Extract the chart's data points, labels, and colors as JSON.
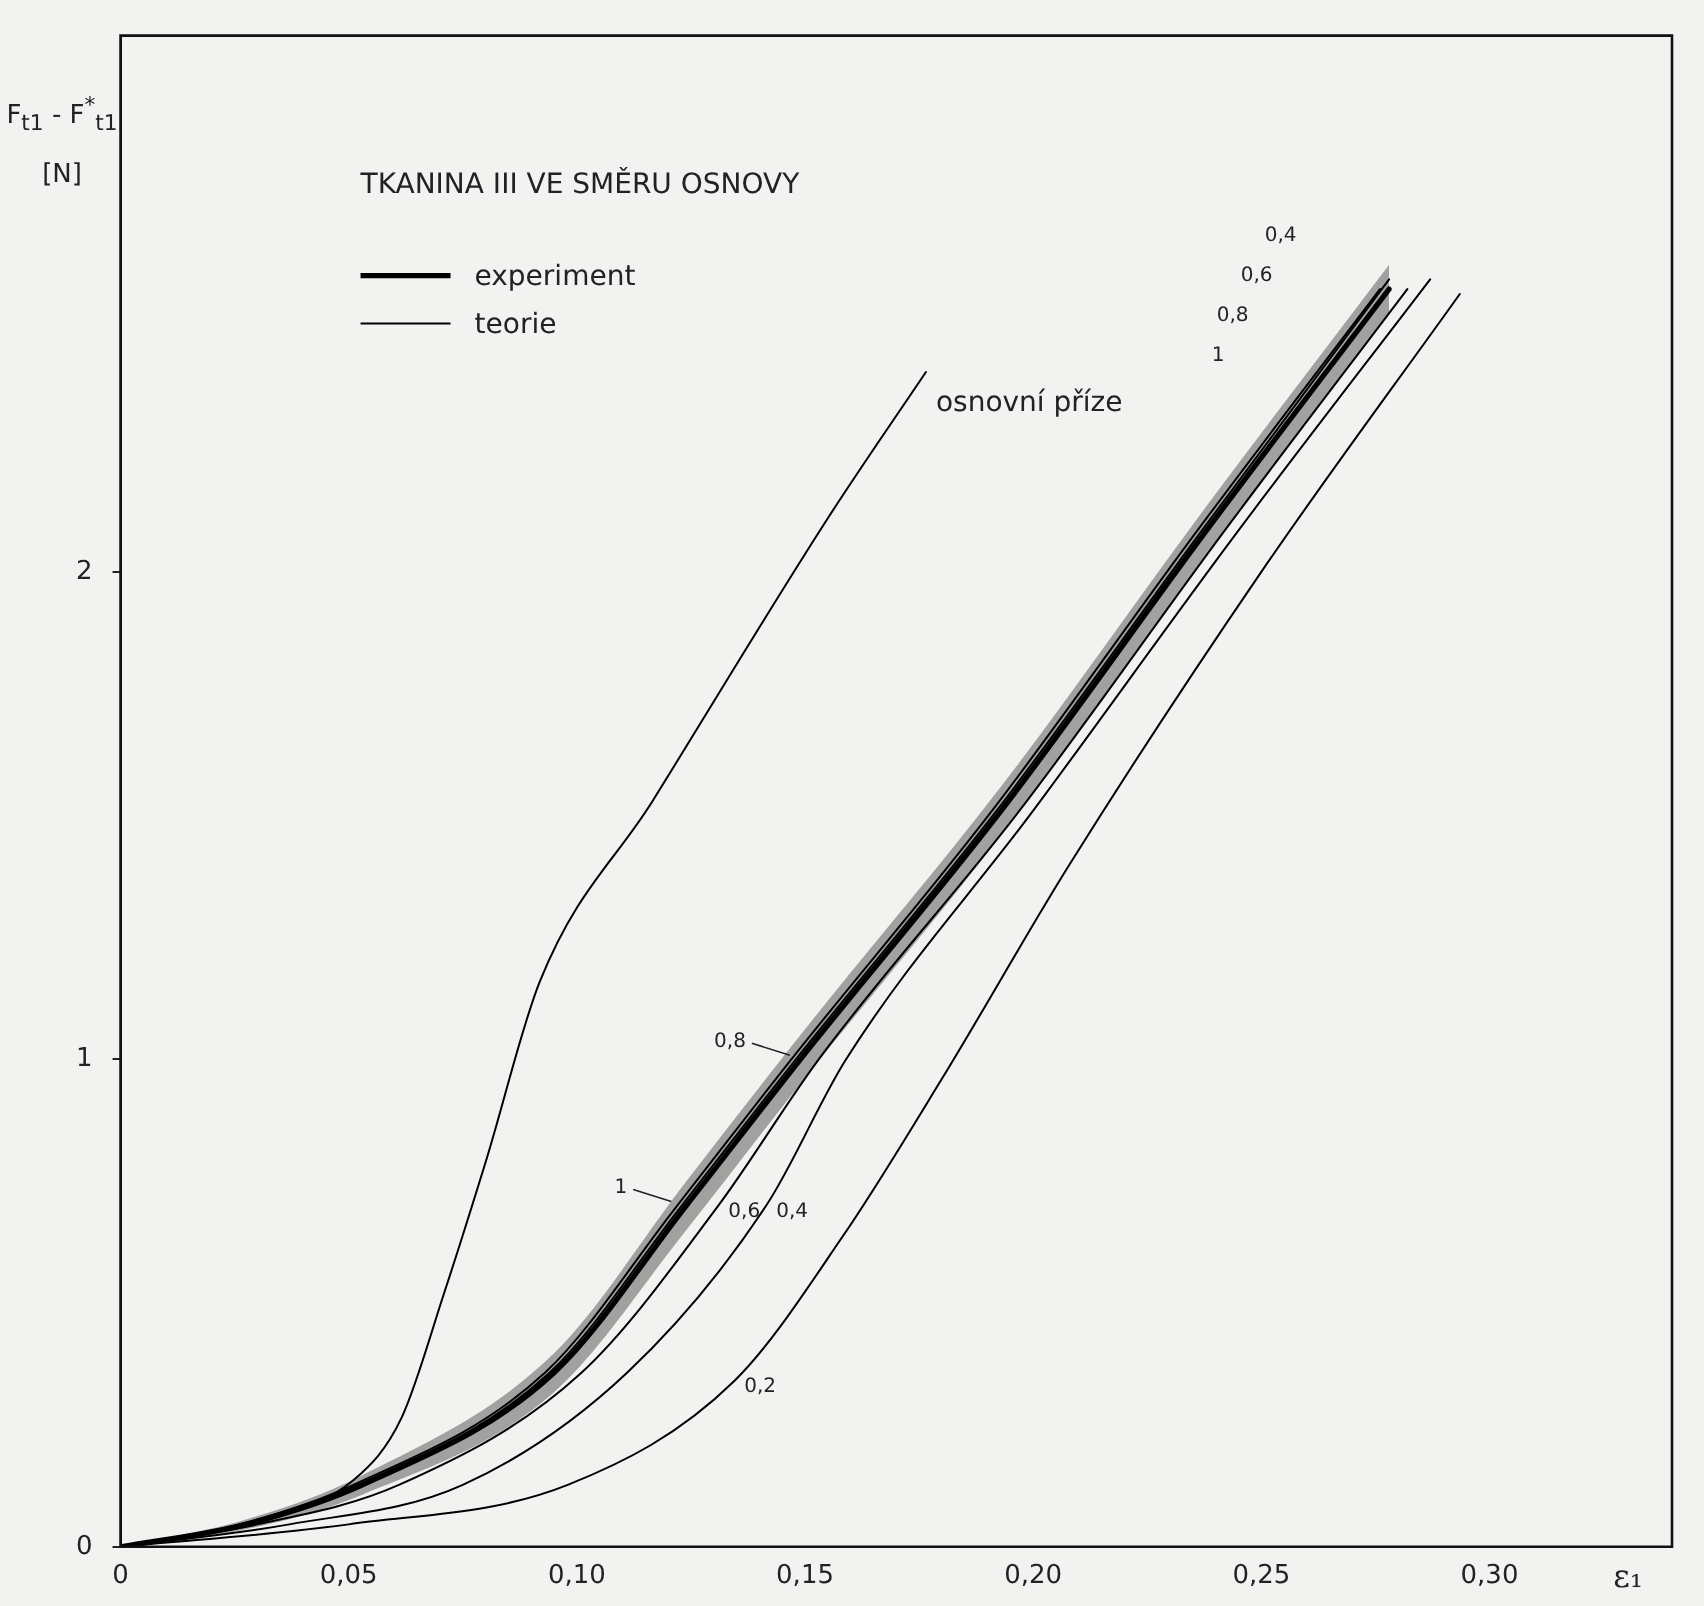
{
  "chart_data": {
    "type": "line",
    "title": "TKANINA III VE SMĚRU OSNOVY",
    "xlabel": "ε₁",
    "ylabel": "F$_{t1}$ - F$^{*}$$_{t1}$ [N]",
    "xlim": [
      0,
      0.34
    ],
    "ylim": [
      0,
      3.1
    ],
    "xticks": [
      0,
      {
        "value": 0.05,
        "label": "0,05"
      },
      {
        "value": 0.1,
        "label": "0,10"
      },
      {
        "value": 0.15,
        "label": "0,15"
      },
      {
        "value": 0.2,
        "label": "0,20"
      },
      {
        "value": 0.25,
        "label": "0,25"
      },
      {
        "value": 0.3,
        "label": "0,30"
      }
    ],
    "yticks": [
      0,
      1,
      2
    ],
    "grid": false,
    "legend": "top left",
    "marker": "none",
    "series": [
      {
        "name": "experiment",
        "color": "#000000",
        "x": [
          0,
          0.0275,
          0.053,
          0.095,
          0.124,
          0.149,
          0.193,
          0.238,
          0.278
        ],
        "values": [
          0,
          0.046,
          0.127,
          0.357,
          0.7,
          1.0,
          1.51,
          2.085,
          2.58
        ],
        "lower": [
          0,
          0.036,
          0.107,
          0.317,
          0.65,
          0.95,
          1.46,
          2.035,
          2.53
        ],
        "upper": [
          0,
          0.056,
          0.147,
          0.397,
          0.75,
          1.05,
          1.56,
          2.135,
          2.63
        ]
      },
      {
        "name": "teorie",
        "color": "#000000",
        "x": [
          0,
          0.026,
          0.051,
          0.093,
          0.122,
          0.147,
          0.191,
          0.236,
          0.276
        ],
        "values": [
          0,
          0.046,
          0.127,
          0.357,
          0.7,
          1.0,
          1.51,
          2.085,
          2.58
        ]
      },
      {
        "color": "#000000",
        "x": [
          0,
          0.027,
          0.052,
          0.094,
          0.123,
          0.148,
          0.192,
          0.237,
          0.278
        ],
        "values": [
          0,
          0.046,
          0.127,
          0.357,
          0.7,
          1.0,
          1.51,
          2.085,
          2.6
        ]
      },
      {
        "color": "#000000",
        "x": [
          0,
          0.03,
          0.061,
          0.101,
          0.131,
          0.153,
          0.197,
          0.242,
          0.282
        ],
        "values": [
          0,
          0.046,
          0.127,
          0.357,
          0.7,
          1.0,
          1.51,
          2.085,
          2.58
        ]
      },
      {
        "color": "#000000",
        "x": [
          0,
          0.037,
          0.075,
          0.111,
          0.1415,
          0.159,
          0.2,
          0.245,
          0.287
        ],
        "values": [
          0,
          0.046,
          0.127,
          0.357,
          0.7,
          1.0,
          1.51,
          2.085,
          2.6
        ]
      },
      {
        "color": "#000000",
        "x": [
          0,
          0.05,
          0.098,
          0.1345,
          0.1585,
          0.18,
          0.208,
          0.25,
          0.2935
        ],
        "values": [
          0,
          0.046,
          0.127,
          0.34,
          0.64,
          0.96,
          1.4,
          2.0,
          2.57
        ]
      },
      {
        "color": "#000000",
        "x": [
          0,
          0.0275,
          0.0512,
          0.0616,
          0.0709,
          0.0802,
          0.0919,
          0.1166,
          0.155,
          0.1765
        ],
        "values": [
          0,
          0.046,
          0.138,
          0.265,
          0.52,
          0.795,
          1.16,
          1.53,
          2.11,
          2.41
        ]
      }
    ],
    "annotations": [
      {
        "text": "osnovní příze",
        "x": 0.1765,
        "y": 2.41
      },
      {
        "text": "0,8",
        "x": 0.148,
        "y": 1.0
      },
      {
        "text": "1",
        "x": 0.122,
        "y": 0.7
      },
      {
        "text": "0,6",
        "x": 0.131,
        "y": 0.7
      },
      {
        "text": "0,4",
        "x": 0.1415,
        "y": 0.7
      },
      {
        "text": "0,2",
        "x": 0.1345,
        "y": 0.34
      },
      "0,4",
      "0,6",
      "0,8",
      "1"
    ]
  }
}
